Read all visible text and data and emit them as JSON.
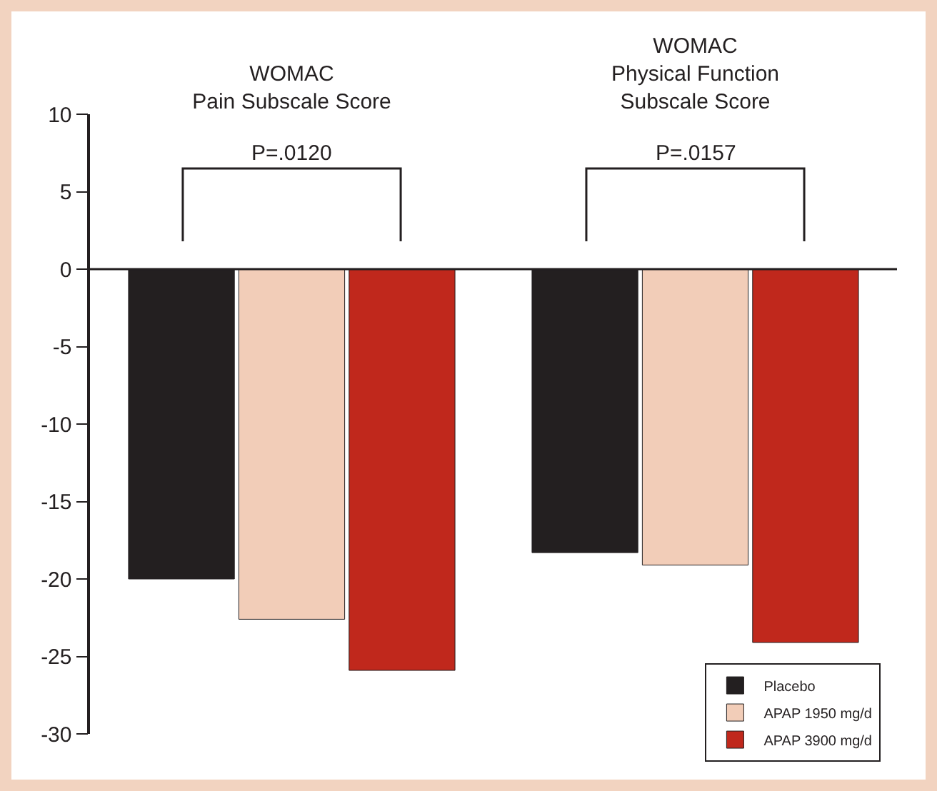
{
  "chart_data": {
    "type": "bar",
    "categories": [
      "WOMAC\nPain Subscale Score",
      "WOMAC\nPhysical Function\nSubscale Score"
    ],
    "series": [
      {
        "name": "Placebo",
        "color": "#231f20",
        "values": [
          -20,
          -18.3
        ]
      },
      {
        "name": "APAP 1950 mg/d",
        "color": "#f2cdb8",
        "values": [
          -22.6,
          -19.1
        ]
      },
      {
        "name": "APAP 3900 mg/d",
        "color": "#c0281c",
        "values": [
          -25.9,
          -24.1
        ]
      }
    ],
    "ref_lines": [
      {
        "axis": "y",
        "value": 0
      }
    ],
    "ylim": [
      -30,
      10
    ],
    "yticks": [
      -30,
      -25,
      -20,
      -15,
      -10,
      -5,
      0,
      5,
      10
    ],
    "grid": false,
    "legend": "bottom right",
    "annotations": [
      "P=.0120",
      "P=.0157"
    ]
  }
}
